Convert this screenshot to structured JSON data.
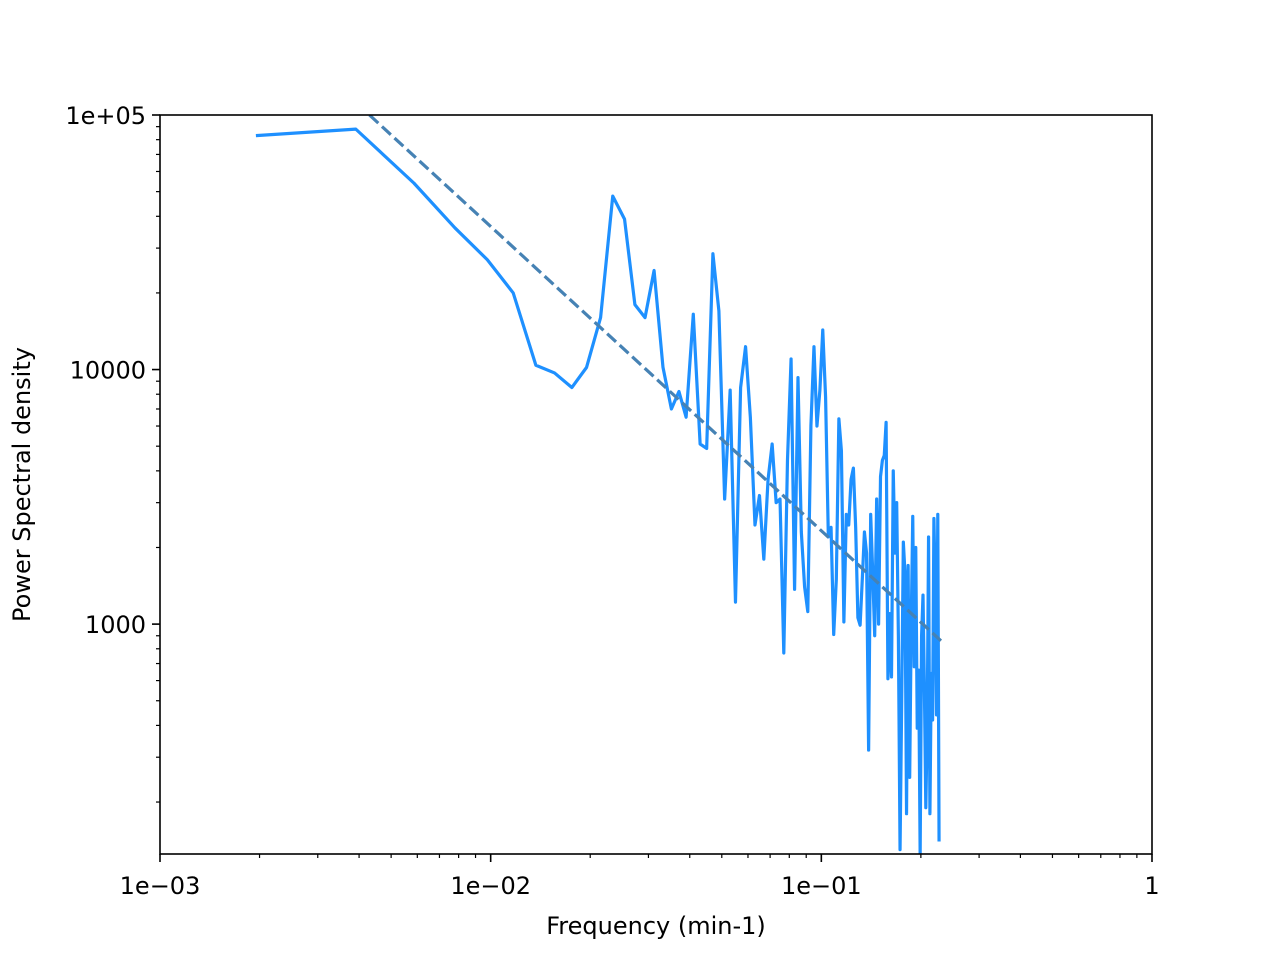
{
  "chart_data": {
    "type": "line",
    "title": "",
    "xlabel": "Frequency (min-1)",
    "ylabel": "Power Spectral density",
    "xscale": "log",
    "yscale": "log",
    "xlim": [
      0.001,
      1
    ],
    "ylim": [
      125,
      100000
    ],
    "grid": false,
    "x_ticks": [
      {
        "value": 0.001,
        "label": "1e−03"
      },
      {
        "value": 0.01,
        "label": "1e−02"
      },
      {
        "value": 0.1,
        "label": "1e−01"
      },
      {
        "value": 1,
        "label": "1"
      }
    ],
    "y_ticks": [
      {
        "value": 1000,
        "label": "1000"
      },
      {
        "value": 10000,
        "label": "10000"
      },
      {
        "value": 100000,
        "label": "1e+05"
      }
    ],
    "colors": {
      "spectrum": "#1e90ff",
      "fit": "#4682b4",
      "axes": "#000000"
    },
    "series": [
      {
        "style": "solid",
        "points": [
          [
            0.00195,
            83000
          ],
          [
            0.00391,
            88000
          ],
          [
            0.00586,
            54000
          ],
          [
            0.0078,
            36000
          ],
          [
            0.00977,
            27000
          ],
          [
            0.0117,
            20000
          ],
          [
            0.0137,
            10400
          ],
          [
            0.0156,
            9700
          ],
          [
            0.0176,
            8500
          ],
          [
            0.0195,
            10200
          ],
          [
            0.0215,
            16000
          ],
          [
            0.0234,
            48000
          ],
          [
            0.0254,
            39000
          ],
          [
            0.0273,
            18000
          ],
          [
            0.0293,
            16000
          ],
          [
            0.0312,
            24500
          ],
          [
            0.0332,
            10200
          ],
          [
            0.0352,
            7000
          ],
          [
            0.0371,
            8200
          ],
          [
            0.039,
            6500
          ],
          [
            0.041,
            16500
          ],
          [
            0.043,
            5100
          ],
          [
            0.045,
            4900
          ],
          [
            0.047,
            28500
          ],
          [
            0.049,
            17000
          ],
          [
            0.051,
            3100
          ],
          [
            0.053,
            8300
          ],
          [
            0.055,
            1220
          ],
          [
            0.057,
            8500
          ],
          [
            0.059,
            12300
          ],
          [
            0.061,
            6500
          ],
          [
            0.063,
            2450
          ],
          [
            0.065,
            3200
          ],
          [
            0.067,
            1800
          ],
          [
            0.069,
            3700
          ],
          [
            0.071,
            5100
          ],
          [
            0.073,
            3000
          ],
          [
            0.075,
            3100
          ],
          [
            0.077,
            770
          ],
          [
            0.079,
            4400
          ],
          [
            0.081,
            11000
          ],
          [
            0.083,
            1370
          ],
          [
            0.085,
            9300
          ],
          [
            0.087,
            2300
          ],
          [
            0.089,
            1400
          ],
          [
            0.091,
            1120
          ],
          [
            0.093,
            6000
          ],
          [
            0.095,
            12300
          ],
          [
            0.097,
            6000
          ],
          [
            0.099,
            8300
          ],
          [
            0.101,
            14300
          ],
          [
            0.103,
            7800
          ],
          [
            0.105,
            2200
          ],
          [
            0.107,
            2400
          ],
          [
            0.109,
            910
          ],
          [
            0.111,
            1500
          ],
          [
            0.113,
            6400
          ],
          [
            0.115,
            4800
          ],
          [
            0.117,
            1020
          ],
          [
            0.119,
            2700
          ],
          [
            0.121,
            2450
          ],
          [
            0.123,
            3700
          ],
          [
            0.125,
            4100
          ],
          [
            0.127,
            2400
          ],
          [
            0.129,
            1060
          ],
          [
            0.131,
            990
          ],
          [
            0.133,
            1500
          ],
          [
            0.135,
            2300
          ],
          [
            0.137,
            1900
          ],
          [
            0.139,
            320
          ],
          [
            0.141,
            2700
          ],
          [
            0.143,
            1600
          ],
          [
            0.145,
            900
          ],
          [
            0.147,
            3100
          ],
          [
            0.149,
            1000
          ],
          [
            0.151,
            3800
          ],
          [
            0.153,
            4400
          ],
          [
            0.155,
            4600
          ],
          [
            0.157,
            6200
          ],
          [
            0.159,
            610
          ],
          [
            0.161,
            1100
          ],
          [
            0.163,
            620
          ],
          [
            0.165,
            4000
          ],
          [
            0.167,
            1900
          ],
          [
            0.169,
            3000
          ],
          [
            0.171,
            900
          ],
          [
            0.173,
            130
          ],
          [
            0.175,
            500
          ],
          [
            0.177,
            2100
          ],
          [
            0.179,
            1600
          ],
          [
            0.181,
            180
          ],
          [
            0.183,
            1700
          ],
          [
            0.185,
            250
          ],
          [
            0.187,
            1000
          ],
          [
            0.189,
            2650
          ],
          [
            0.191,
            680
          ],
          [
            0.193,
            2000
          ],
          [
            0.195,
            390
          ],
          [
            0.197,
            660
          ],
          [
            0.199,
            125
          ],
          [
            0.201,
            900
          ],
          [
            0.203,
            1300
          ],
          [
            0.205,
            550
          ],
          [
            0.207,
            190
          ],
          [
            0.209,
            400
          ],
          [
            0.211,
            2200
          ],
          [
            0.213,
            180
          ],
          [
            0.215,
            640
          ],
          [
            0.217,
            420
          ],
          [
            0.219,
            2600
          ],
          [
            0.221,
            1420
          ],
          [
            0.223,
            440
          ],
          [
            0.225,
            2700
          ],
          [
            0.227,
            140
          ]
        ]
      },
      {
        "style": "dashed",
        "points": [
          [
            0.0043,
            100000
          ],
          [
            0.23,
            860
          ]
        ]
      }
    ]
  }
}
